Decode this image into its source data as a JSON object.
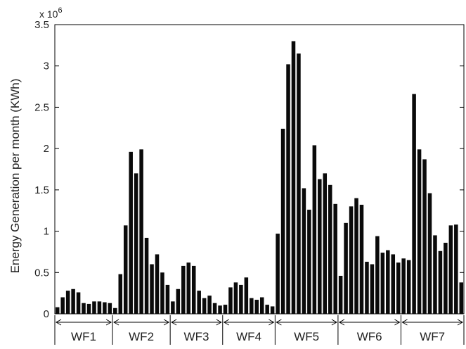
{
  "chart_data": {
    "type": "bar",
    "title": "",
    "xlabel": "",
    "ylabel": "Energy Generation per month (KWh)",
    "y_exponent_label": "x 10",
    "y_exponent_power": "6",
    "y_scale": 1000000,
    "ylim": [
      0,
      3500000
    ],
    "yticks": [
      0,
      500000,
      1000000,
      1500000,
      2000000,
      2500000,
      3000000,
      3500000
    ],
    "ytick_labels": [
      "0",
      "0.5",
      "1",
      "1.5",
      "2",
      "2.5",
      "3",
      "3.5"
    ],
    "grid": false,
    "groups": [
      {
        "label": "WF1",
        "values": [
          80000,
          200000,
          280000,
          300000,
          260000,
          130000,
          120000,
          150000,
          150000,
          140000,
          130000
        ]
      },
      {
        "label": "WF2",
        "values": [
          70000,
          480000,
          1070000,
          1960000,
          1700000,
          1990000,
          920000,
          600000,
          720000,
          500000,
          350000
        ]
      },
      {
        "label": "WF3",
        "values": [
          150000,
          300000,
          580000,
          620000,
          580000,
          280000,
          190000,
          220000,
          130000,
          100000
        ]
      },
      {
        "label": "WF4",
        "values": [
          110000,
          320000,
          380000,
          350000,
          440000,
          190000,
          170000,
          200000,
          110000,
          90000
        ]
      },
      {
        "label": "WF5",
        "values": [
          970000,
          2240000,
          3020000,
          3300000,
          3150000,
          1520000,
          1260000,
          2040000,
          1630000,
          1700000,
          1560000,
          1330000
        ]
      },
      {
        "label": "WF6",
        "values": [
          460000,
          1100000,
          1300000,
          1400000,
          1320000,
          630000,
          600000,
          940000,
          740000,
          770000,
          720000,
          620000
        ]
      },
      {
        "label": "WF7",
        "values": [
          670000,
          650000,
          2660000,
          1990000,
          1870000,
          1460000,
          950000,
          760000,
          860000,
          1070000,
          1080000,
          380000
        ]
      }
    ]
  }
}
